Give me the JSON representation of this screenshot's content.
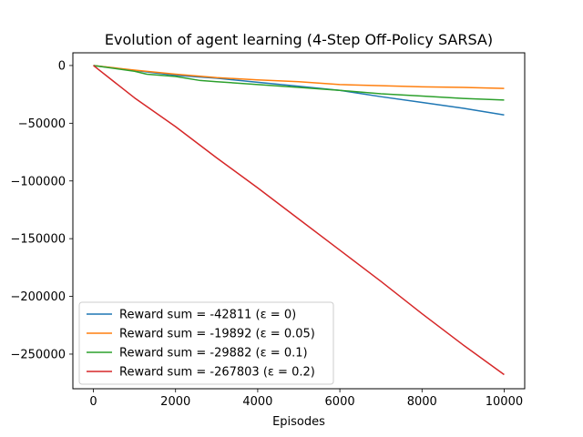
{
  "chart_data": {
    "type": "line",
    "title": "Evolution of agent learning (4-Step Off-Policy SARSA)",
    "xlabel": "Episodes",
    "ylabel": "",
    "xlim": [
      -500,
      10500
    ],
    "ylim": [
      -280000,
      11000
    ],
    "xticks": [
      0,
      2000,
      4000,
      6000,
      8000,
      10000
    ],
    "yticks": [
      0,
      -50000,
      -100000,
      -150000,
      -200000,
      -250000
    ],
    "grid": false,
    "legend_position": "lower-left",
    "series": [
      {
        "name": "Reward sum = -42811 (ε = 0)",
        "color": "#1f77b4",
        "x": [
          0,
          1000,
          2000,
          3000,
          4000,
          5000,
          6000,
          7000,
          8000,
          9000,
          10000
        ],
        "y": [
          0,
          -4300,
          -8500,
          -11000,
          -14500,
          -18000,
          -21500,
          -27000,
          -32000,
          -37000,
          -42811
        ]
      },
      {
        "name": "Reward sum = -19892 (ε = 0.05)",
        "color": "#ff7f0e",
        "x": [
          0,
          1000,
          2000,
          3000,
          4000,
          5000,
          6000,
          7000,
          8000,
          9000,
          10000
        ],
        "y": [
          0,
          -4000,
          -7500,
          -10500,
          -12500,
          -14000,
          -16500,
          -17500,
          -18500,
          -19000,
          -19892
        ]
      },
      {
        "name": "Reward sum = -29882 (ε = 0.1)",
        "color": "#2ca02c",
        "x": [
          0,
          1000,
          1300,
          2000,
          2600,
          3000,
          4000,
          5000,
          6000,
          7000,
          8000,
          9000,
          10000
        ],
        "y": [
          0,
          -5000,
          -7500,
          -9500,
          -13000,
          -14000,
          -16500,
          -19000,
          -21500,
          -24500,
          -26500,
          -28500,
          -29882
        ]
      },
      {
        "name": "Reward sum = -267803 (ε = 0.2)",
        "color": "#d62728",
        "x": [
          0,
          1000,
          2000,
          3000,
          4000,
          5000,
          6000,
          7000,
          8000,
          9000,
          10000
        ],
        "y": [
          0,
          -28000,
          -53000,
          -80000,
          -106000,
          -133000,
          -160000,
          -187000,
          -215000,
          -242000,
          -267803
        ]
      }
    ]
  }
}
